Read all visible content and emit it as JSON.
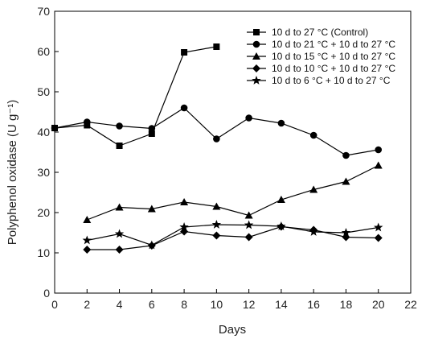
{
  "chart_data": {
    "type": "line",
    "xlabel": "Days",
    "ylabel": "Polyphenol oxidase (U g⁻¹)",
    "xlim": [
      0,
      22
    ],
    "ylim": [
      0,
      70
    ],
    "xticks": [
      "0",
      "2",
      "4",
      "6",
      "8",
      "10",
      "12",
      "14",
      "16",
      "18",
      "20",
      "22"
    ],
    "yticks": [
      "0",
      "10",
      "20",
      "30",
      "40",
      "50",
      "60",
      "70"
    ],
    "grid": false,
    "legend_position": "top-right",
    "color": "#000000",
    "series": [
      {
        "name": "10 d to  27 °C (Control)",
        "marker": "square",
        "points": [
          [
            0,
            41.0
          ],
          [
            2,
            41.7
          ],
          [
            4,
            36.6
          ],
          [
            6,
            39.6
          ],
          [
            8,
            59.8
          ],
          [
            10,
            61.2
          ]
        ]
      },
      {
        "name": "10 d to  21 °C + 10 d to 27 °C",
        "marker": "circle",
        "points": [
          [
            0,
            41.0
          ],
          [
            2,
            42.5
          ],
          [
            4,
            41.5
          ],
          [
            6,
            40.9
          ],
          [
            8,
            46.0
          ],
          [
            10,
            38.3
          ],
          [
            12,
            43.5
          ],
          [
            14,
            42.2
          ],
          [
            16,
            39.2
          ],
          [
            18,
            34.2
          ],
          [
            20,
            35.6
          ]
        ]
      },
      {
        "name": "10 d to 15 °C + 10 d to 27 °C",
        "marker": "triangle",
        "points": [
          [
            2,
            18.2
          ],
          [
            4,
            21.3
          ],
          [
            6,
            20.9
          ],
          [
            8,
            22.6
          ],
          [
            10,
            21.5
          ],
          [
            12,
            19.3
          ],
          [
            14,
            23.2
          ],
          [
            16,
            25.7
          ],
          [
            18,
            27.7
          ],
          [
            20,
            31.7
          ]
        ]
      },
      {
        "name": "10 d to 10 °C + 10 d to 27 °C",
        "marker": "diamond",
        "points": [
          [
            2,
            10.8
          ],
          [
            4,
            10.8
          ],
          [
            6,
            11.8
          ],
          [
            8,
            15.3
          ],
          [
            10,
            14.3
          ],
          [
            12,
            13.9
          ],
          [
            14,
            16.5
          ],
          [
            16,
            15.7
          ],
          [
            18,
            13.9
          ],
          [
            20,
            13.7
          ]
        ]
      },
      {
        "name": "10 d to   6 °C + 10 d to 27 °C",
        "marker": "star",
        "points": [
          [
            2,
            13.1
          ],
          [
            4,
            14.7
          ],
          [
            6,
            11.9
          ],
          [
            8,
            16.4
          ],
          [
            10,
            17.0
          ],
          [
            12,
            16.9
          ],
          [
            14,
            16.6
          ],
          [
            16,
            15.2
          ],
          [
            18,
            15.0
          ],
          [
            20,
            16.3
          ]
        ]
      }
    ]
  }
}
